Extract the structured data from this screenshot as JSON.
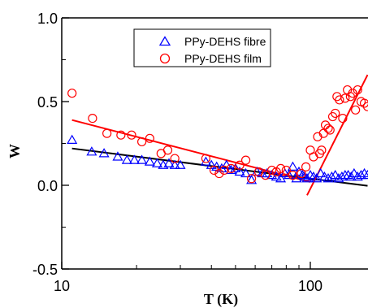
{
  "chart_data": {
    "type": "scatter",
    "title": "",
    "xlabel": "T (K)",
    "ylabel": "W",
    "xscale": "log",
    "xlim": [
      10,
      170
    ],
    "ylim": [
      -0.5,
      1.0
    ],
    "x_ticks": [
      10,
      100
    ],
    "x_tick_labels": [
      "10",
      "100"
    ],
    "y_ticks": [
      -0.5,
      0.0,
      0.5,
      1.0
    ],
    "y_tick_labels": [
      "-0.5",
      "0.0",
      "0.5",
      "1.0"
    ],
    "grid": false,
    "legend_position": "top-center",
    "colors": {
      "fibre": "#0000ff",
      "film": "#ff0000",
      "fit_fibre": "#000000",
      "fit_film": "#ff0000"
    },
    "series": [
      {
        "name": "PPy-DEHS fibre",
        "marker": "triangle-open",
        "x": [
          11,
          13.2,
          14.8,
          16.8,
          18.3,
          19.6,
          21,
          22.6,
          24.2,
          25.6,
          27,
          28.5,
          30,
          38,
          40,
          42,
          44,
          46,
          48,
          50,
          52,
          55,
          58,
          61,
          64,
          67,
          70,
          73,
          76,
          79,
          82,
          85,
          88,
          90,
          93,
          95,
          97,
          100,
          103,
          106,
          110,
          114,
          118,
          122,
          126,
          130,
          134,
          138,
          142,
          146,
          150,
          155,
          160,
          165,
          170
        ],
        "y": [
          0.27,
          0.2,
          0.19,
          0.17,
          0.15,
          0.15,
          0.15,
          0.14,
          0.13,
          0.12,
          0.13,
          0.12,
          0.12,
          0.14,
          0.12,
          0.11,
          0.1,
          0.12,
          0.09,
          0.1,
          0.08,
          0.07,
          0.03,
          0.08,
          0.07,
          0.07,
          0.06,
          0.05,
          0.04,
          0.07,
          0.06,
          0.11,
          0.04,
          0.08,
          0.06,
          0.05,
          0.04,
          0.06,
          0.05,
          0.04,
          0.07,
          0.05,
          0.04,
          0.05,
          0.06,
          0.04,
          0.05,
          0.06,
          0.06,
          0.05,
          0.07,
          0.05,
          0.06,
          0.07,
          0.06
        ]
      },
      {
        "name": "PPy-DEHS film",
        "marker": "circle-open",
        "x": [
          11,
          13.3,
          15.2,
          17.3,
          19.1,
          21,
          22.6,
          25.1,
          26.7,
          28.5,
          38,
          41,
          43,
          45,
          48,
          52,
          55,
          58,
          62,
          66,
          70,
          73,
          76,
          80,
          85,
          92,
          96,
          100,
          103,
          107,
          109,
          111,
          113,
          115,
          118,
          120,
          123,
          126,
          128,
          131,
          135,
          138,
          141,
          145,
          148,
          152,
          155,
          160,
          165,
          170
        ],
        "y": [
          0.55,
          0.4,
          0.31,
          0.3,
          0.3,
          0.26,
          0.28,
          0.19,
          0.21,
          0.16,
          0.16,
          0.09,
          0.07,
          0.09,
          0.1,
          0.12,
          0.15,
          0.04,
          0.08,
          0.06,
          0.09,
          0.08,
          0.1,
          0.09,
          0.06,
          0.07,
          0.11,
          0.21,
          0.17,
          0.29,
          0.19,
          0.21,
          0.31,
          0.36,
          0.34,
          0.33,
          0.41,
          0.43,
          0.53,
          0.51,
          0.4,
          0.52,
          0.57,
          0.53,
          0.55,
          0.45,
          0.57,
          0.5,
          0.49,
          0.47
        ]
      }
    ],
    "fit_lines": [
      {
        "name": "fibre fit",
        "color": "#000000",
        "x": [
          11,
          170
        ],
        "y": [
          0.22,
          -0.003
        ]
      },
      {
        "name": "film fit low-T",
        "color": "#ff0000",
        "x": [
          11,
          100
        ],
        "y": [
          0.39,
          0.02
        ]
      },
      {
        "name": "film fit high-T",
        "color": "#ff0000",
        "x": [
          97,
          170
        ],
        "y": [
          -0.06,
          0.66
        ]
      }
    ]
  }
}
